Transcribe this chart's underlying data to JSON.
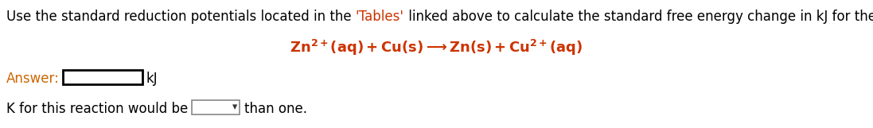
{
  "bg_color": "#ffffff",
  "t1": "Use the standard reduction potentials located in the ",
  "t2": "'Tables'",
  "t3": " linked above to calculate the standard free energy change in kJ for the reaction:",
  "t1_color": "#000000",
  "t2_color": "#cc3300",
  "t3_color": "#000000",
  "reaction": "Zn$^{2+}$(aq) + Cu(s)⟶ Zn(s) + Cu$^{2+}$(aq)",
  "reaction_color": "#cc3300",
  "answer_label": "Answer:",
  "answer_color": "#cc6600",
  "answer_unit": "kJ",
  "bottom_text1": "K for this reaction would be",
  "bottom_text2": "than one.",
  "text_color": "#000000",
  "font_size": 12,
  "reaction_font_size": 13,
  "fig_width": 10.97,
  "fig_height": 1.61,
  "dpi": 100
}
